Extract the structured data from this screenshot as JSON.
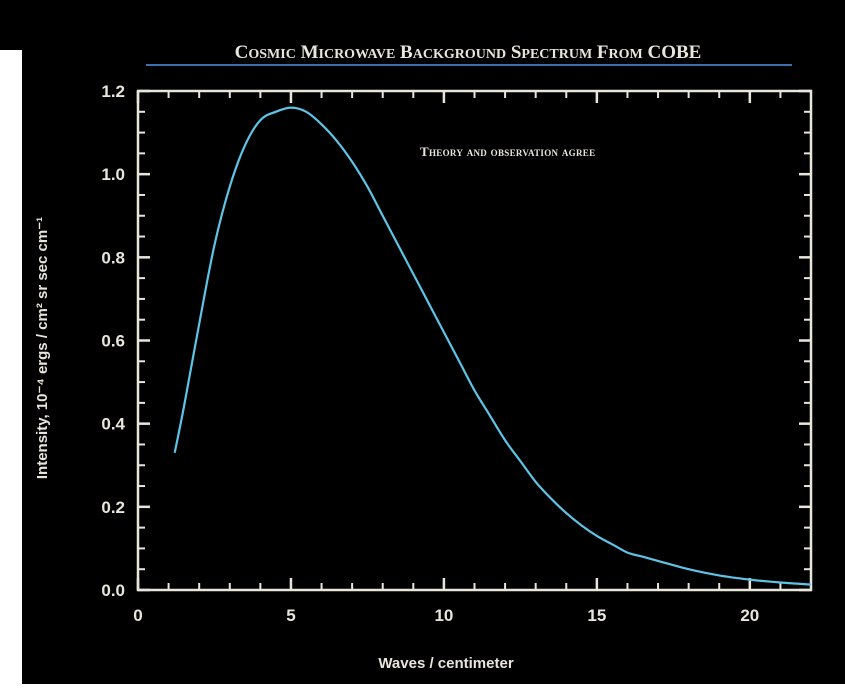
{
  "chart_data": {
    "type": "line",
    "title": "Cosmic Microwave Background Spectrum from COBE",
    "annotation": "Theory and observation agree",
    "xlabel": "Waves / centimeter",
    "ylabel": "Intensity, 10⁻⁴ ergs / cm² sr sec cm⁻¹",
    "xlim": [
      0,
      22
    ],
    "ylim": [
      0,
      1.2
    ],
    "x_ticks": [
      0,
      5,
      10,
      15,
      20
    ],
    "x_tick_labels": [
      "0",
      "5",
      "10",
      "15",
      "20"
    ],
    "y_ticks": [
      0,
      0.2,
      0.4,
      0.6,
      0.8,
      1.0,
      1.2
    ],
    "y_tick_labels": [
      "0.0",
      "0.2",
      "0.4",
      "0.6",
      "0.8",
      "1.0",
      "1.2"
    ],
    "grid": false,
    "series": [
      {
        "x": [
          1.2,
          1.5,
          2,
          2.5,
          3,
          3.5,
          4,
          4.5,
          5,
          5.5,
          6,
          6.5,
          7,
          7.5,
          8,
          8.5,
          9,
          9.5,
          10,
          10.5,
          11,
          11.5,
          12,
          12.5,
          13,
          13.5,
          14,
          14.5,
          15,
          15.5,
          16,
          16.5,
          17,
          18,
          19,
          20,
          21,
          22
        ],
        "y": [
          0.33,
          0.44,
          0.64,
          0.83,
          0.97,
          1.07,
          1.13,
          1.15,
          1.16,
          1.15,
          1.12,
          1.08,
          1.03,
          0.97,
          0.9,
          0.83,
          0.76,
          0.69,
          0.62,
          0.55,
          0.48,
          0.42,
          0.36,
          0.31,
          0.26,
          0.22,
          0.185,
          0.155,
          0.13,
          0.11,
          0.09,
          0.08,
          0.07,
          0.05,
          0.035,
          0.025,
          0.018,
          0.013
        ]
      }
    ],
    "colors": {
      "background": "#000000",
      "axes": "#e8e6dc",
      "curve": "#5ec4e6",
      "title_rule": "#3a6fb0"
    }
  }
}
